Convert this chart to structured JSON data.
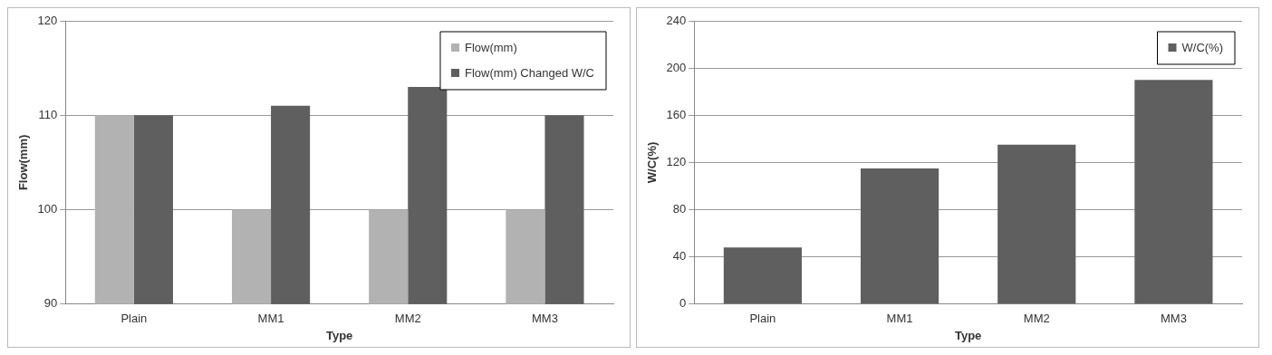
{
  "chart_data": [
    {
      "type": "bar",
      "xlabel": "Type",
      "ylabel": "Flow(mm)",
      "categories": [
        "Plain",
        "MM1",
        "MM2",
        "MM3"
      ],
      "series": [
        {
          "name": "Flow(mm)",
          "color": "#b2b2b2",
          "values": [
            110,
            100,
            100,
            100
          ]
        },
        {
          "name": "Flow(mm) Changed W/C",
          "color": "#5f5f5f",
          "values": [
            110,
            111,
            113,
            110
          ]
        }
      ],
      "ylim": [
        90,
        120
      ],
      "yticks": [
        90,
        100,
        110,
        120
      ],
      "grid": "y",
      "legend": "top right"
    },
    {
      "type": "bar",
      "xlabel": "Type",
      "ylabel": "W/C(%)",
      "categories": [
        "Plain",
        "MM1",
        "MM2",
        "MM3"
      ],
      "series": [
        {
          "name": "W/C(%)",
          "color": "#5f5f5f",
          "values": [
            48,
            115,
            135,
            190
          ]
        }
      ],
      "ylim": [
        0,
        240
      ],
      "yticks": [
        0,
        40,
        80,
        120,
        160,
        200,
        240
      ],
      "grid": "y",
      "legend": "top right"
    }
  ]
}
